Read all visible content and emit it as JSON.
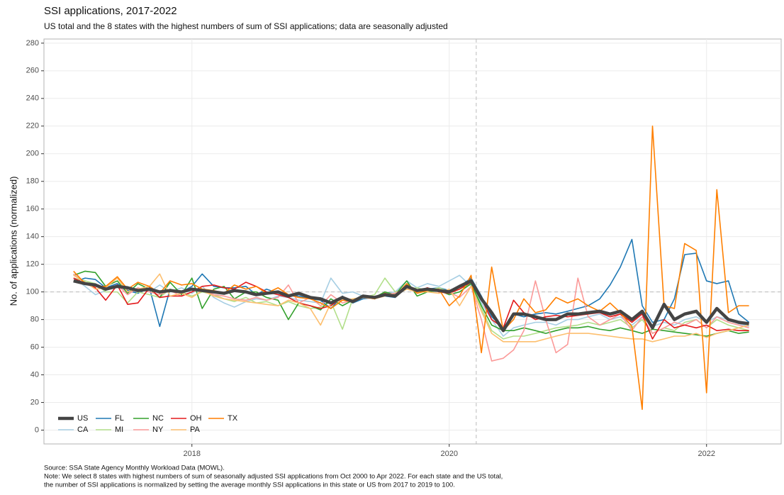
{
  "chart_data": {
    "type": "line",
    "title": "SSI applications, 2017-2022",
    "subtitle": "US total and the 8 states with the highest numbers of sum of SSI applications; data are seasonally adjusted",
    "y_label": "No. of applications (normalized)",
    "notes": [
      "Source: SSA State Agency Monthly Workload Data (MOWL).",
      "Note: We select 8 states with highest numbers of sum of seasonally adjusted SSI applications from Oct 2000 to Apr 2022. For each state and the US total,",
      "the number of SSI applications is normalized by setting the average monthly SSI applications in this state or US from 2017 to 2019 to 100."
    ],
    "xlim": [
      2016.85,
      2022.58
    ],
    "xticks": [
      2018,
      2020,
      2022
    ],
    "ylim": [
      -10,
      283
    ],
    "yticks": [
      0,
      20,
      40,
      60,
      80,
      100,
      120,
      140,
      160,
      180,
      200,
      220,
      240,
      260,
      280
    ],
    "grid": true,
    "hline": 100,
    "vline": 2020.21,
    "legend": "bottom-left",
    "x": [
      2017.08,
      2017.17,
      2017.25,
      2017.33,
      2017.42,
      2017.5,
      2017.58,
      2017.67,
      2017.75,
      2017.83,
      2017.92,
      2018,
      2018.08,
      2018.17,
      2018.25,
      2018.33,
      2018.42,
      2018.5,
      2018.58,
      2018.67,
      2018.75,
      2018.83,
      2018.92,
      2019,
      2019.08,
      2019.17,
      2019.25,
      2019.33,
      2019.42,
      2019.5,
      2019.58,
      2019.67,
      2019.75,
      2019.83,
      2019.92,
      2020,
      2020.08,
      2020.17,
      2020.25,
      2020.33,
      2020.42,
      2020.5,
      2020.58,
      2020.67,
      2020.75,
      2020.83,
      2020.92,
      2021,
      2021.08,
      2021.17,
      2021.25,
      2021.33,
      2021.42,
      2021.5,
      2021.58,
      2021.67,
      2021.75,
      2021.83,
      2021.92,
      2022,
      2022.08,
      2022.17,
      2022.25,
      2022.33
    ],
    "series": [
      {
        "name": "US",
        "color": "#444444",
        "linewidth": 4.5,
        "values": [
          108,
          106,
          105,
          102,
          104,
          103,
          101,
          102,
          100,
          101,
          100,
          102,
          101,
          100,
          99,
          101,
          100,
          98,
          99,
          100,
          97,
          99,
          96,
          95,
          92,
          96,
          93,
          97,
          96,
          98,
          97,
          104,
          101,
          102,
          101,
          100,
          104,
          108,
          95,
          85,
          72,
          84,
          84,
          82,
          80,
          80,
          84,
          84,
          85,
          86,
          84,
          86,
          80,
          86,
          74,
          91,
          80,
          84,
          86,
          78,
          88,
          80,
          78,
          77
        ]
      },
      {
        "name": "CA",
        "color": "#a6cee3",
        "linewidth": 1.6,
        "values": [
          110,
          104,
          98,
          101,
          105,
          100,
          102,
          100,
          105,
          100,
          103,
          99,
          104,
          96,
          92,
          89,
          93,
          95,
          94,
          97,
          96,
          94,
          93,
          92,
          110,
          99,
          100,
          97,
          95,
          99,
          100,
          108,
          103,
          106,
          104,
          108,
          112,
          104,
          92,
          80,
          68,
          74,
          76,
          78,
          78,
          76,
          80,
          80,
          82,
          84,
          80,
          82,
          76,
          82,
          75,
          78,
          76,
          80,
          82,
          78,
          82,
          80,
          77,
          75
        ]
      },
      {
        "name": "FL",
        "color": "#1f78b4",
        "linewidth": 1.6,
        "values": [
          107,
          110,
          109,
          103,
          106,
          101,
          99,
          103,
          75,
          102,
          100,
          104,
          113,
          104,
          103,
          103,
          104,
          98,
          102,
          99,
          98,
          97,
          95,
          94,
          88,
          97,
          92,
          95,
          96,
          97,
          96,
          106,
          100,
          102,
          103,
          101,
          104,
          110,
          97,
          82,
          74,
          84,
          82,
          84,
          85,
          84,
          86,
          88,
          90,
          95,
          105,
          118,
          138,
          90,
          78,
          80,
          95,
          127,
          128,
          108,
          106,
          108,
          84,
          78
        ]
      },
      {
        "name": "MI",
        "color": "#b2df8a",
        "linewidth": 1.6,
        "values": [
          110,
          108,
          106,
          100,
          100,
          92,
          100,
          98,
          96,
          102,
          100,
          97,
          100,
          98,
          95,
          93,
          96,
          92,
          93,
          90,
          93,
          90,
          88,
          89,
          93,
          73,
          95,
          96,
          98,
          110,
          100,
          102,
          103,
          101,
          103,
          100,
          102,
          106,
          88,
          72,
          66,
          68,
          68,
          70,
          72,
          74,
          75,
          76,
          78,
          76,
          78,
          80,
          74,
          80,
          70,
          74,
          72,
          78,
          80,
          74,
          80,
          76,
          74,
          72
        ]
      },
      {
        "name": "NC",
        "color": "#33a02c",
        "linewidth": 1.6,
        "values": [
          112,
          115,
          114,
          104,
          108,
          99,
          106,
          102,
          96,
          107,
          98,
          110,
          88,
          102,
          104,
          95,
          100,
          100,
          96,
          94,
          80,
          92,
          90,
          87,
          95,
          90,
          94,
          97,
          96,
          100,
          98,
          108,
          97,
          100,
          101,
          98,
          100,
          106,
          90,
          76,
          72,
          72,
          74,
          72,
          70,
          72,
          74,
          74,
          75,
          73,
          72,
          74,
          72,
          70,
          73,
          72,
          71,
          70,
          69,
          68,
          70,
          72,
          70,
          71
        ]
      },
      {
        "name": "NY",
        "color": "#fb9a99",
        "linewidth": 1.6,
        "values": [
          113,
          106,
          104,
          102,
          105,
          98,
          103,
          100,
          98,
          101,
          97,
          100,
          102,
          98,
          97,
          95,
          94,
          96,
          94,
          96,
          105,
          92,
          96,
          90,
          98,
          92,
          94,
          97,
          96,
          98,
          99,
          103,
          100,
          101,
          102,
          100,
          96,
          104,
          80,
          50,
          52,
          58,
          72,
          108,
          80,
          56,
          62,
          110,
          82,
          76,
          80,
          84,
          72,
          82,
          70,
          74,
          78,
          76,
          80,
          74,
          82,
          78,
          76,
          74
        ]
      },
      {
        "name": "OH",
        "color": "#e31a1c",
        "linewidth": 1.6,
        "values": [
          110,
          106,
          103,
          94,
          105,
          91,
          92,
          103,
          96,
          97,
          97,
          100,
          104,
          105,
          103,
          102,
          107,
          104,
          100,
          98,
          96,
          92,
          90,
          88,
          90,
          96,
          94,
          96,
          95,
          99,
          97,
          104,
          100,
          103,
          100,
          99,
          102,
          107,
          95,
          80,
          74,
          94,
          85,
          80,
          82,
          83,
          82,
          83,
          84,
          85,
          82,
          84,
          78,
          84,
          66,
          80,
          74,
          76,
          74,
          76,
          72,
          73,
          72,
          72
        ]
      },
      {
        "name": "PA",
        "color": "#fdbf6f",
        "linewidth": 1.6,
        "values": [
          112,
          107,
          102,
          103,
          110,
          100,
          102,
          104,
          113,
          97,
          99,
          96,
          101,
          97,
          95,
          94,
          93,
          92,
          91,
          90,
          94,
          92,
          88,
          76,
          92,
          94,
          95,
          96,
          95,
          97,
          98,
          102,
          100,
          100,
          99,
          102,
          90,
          104,
          86,
          70,
          64,
          64,
          64,
          64,
          66,
          68,
          70,
          70,
          70,
          69,
          68,
          67,
          66,
          66,
          64,
          66,
          68,
          68,
          70,
          67,
          70,
          72,
          74,
          76
        ]
      },
      {
        "name": "TX",
        "color": "#ff7f00",
        "linewidth": 1.6,
        "values": [
          115,
          106,
          104,
          104,
          111,
          102,
          107,
          104,
          99,
          108,
          105,
          106,
          102,
          101,
          99,
          105,
          102,
          104,
          99,
          103,
          98,
          96,
          95,
          92,
          88,
          94,
          93,
          97,
          95,
          99,
          97,
          106,
          99,
          101,
          102,
          90,
          97,
          112,
          56,
          118,
          72,
          80,
          95,
          85,
          87,
          96,
          92,
          95,
          90,
          86,
          92,
          85,
          75,
          15,
          220,
          90,
          88,
          135,
          130,
          27,
          174,
          85,
          90,
          90
        ]
      }
    ]
  }
}
